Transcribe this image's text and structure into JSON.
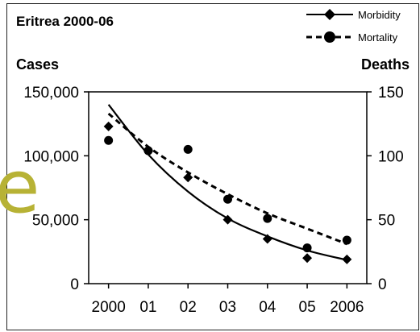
{
  "chart_data": {
    "type": "scatter",
    "title": "Eritrea 2000-06",
    "ylabel_left": "Cases",
    "ylabel_right": "Deaths",
    "x_tick_labels": [
      "2000",
      "01",
      "02",
      "03",
      "04",
      "05",
      "2006"
    ],
    "x": [
      2000,
      2001,
      2002,
      2003,
      2004,
      2005,
      2006
    ],
    "y_left_ticks": [
      "0",
      "50,000",
      "100,000",
      "150,000"
    ],
    "y_right_ticks": [
      "0",
      "50",
      "100",
      "150"
    ],
    "ylim_left": [
      0,
      150000
    ],
    "ylim_right": [
      0,
      150
    ],
    "grid": false,
    "legend_position": "top-right",
    "series": [
      {
        "name": "Morbidity",
        "axis": "left",
        "marker": "diamond",
        "line_style": "solid",
        "values": [
          123000,
          104000,
          83000,
          50000,
          35000,
          20000,
          19000
        ],
        "trend": [
          140000,
          101000,
          72000,
          51000,
          37000,
          26000,
          18500
        ]
      },
      {
        "name": "Mortality",
        "axis": "right",
        "marker": "circle",
        "line_style": "dashed",
        "values": [
          112,
          104,
          105,
          66,
          51,
          28,
          34
        ],
        "trend": [
          133,
          107,
          87,
          70,
          55,
          43,
          31
        ]
      }
    ]
  },
  "decoration": {
    "text": "e",
    "color": "#b7b235"
  }
}
